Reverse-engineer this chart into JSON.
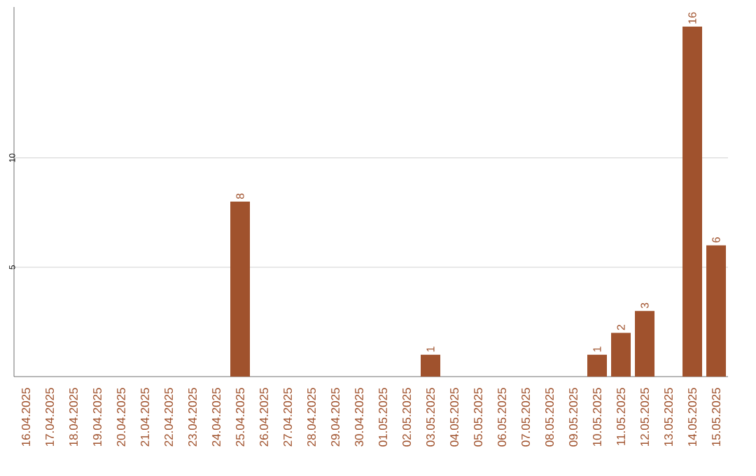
{
  "chart_data": {
    "type": "bar",
    "categories": [
      "16.04.2025",
      "17.04.2025",
      "18.04.2025",
      "19.04.2025",
      "20.04.2025",
      "21.04.2025",
      "22.04.2025",
      "23.04.2025",
      "24.04.2025",
      "25.04.2025",
      "26.04.2025",
      "27.04.2025",
      "28.04.2025",
      "29.04.2025",
      "30.04.2025",
      "01.05.2025",
      "02.05.2025",
      "03.05.2025",
      "04.05.2025",
      "05.05.2025",
      "06.05.2025",
      "07.05.2025",
      "08.05.2025",
      "09.05.2025",
      "10.05.2025",
      "11.05.2025",
      "12.05.2025",
      "13.05.2025",
      "14.05.2025",
      "15.05.2025"
    ],
    "values": [
      0,
      0,
      0,
      0,
      0,
      0,
      0,
      0,
      0,
      8,
      0,
      0,
      0,
      0,
      0,
      0,
      0,
      1,
      0,
      0,
      0,
      0,
      0,
      0,
      1,
      2,
      3,
      0,
      16,
      6
    ],
    "value_labels": [
      null,
      null,
      null,
      null,
      null,
      null,
      null,
      null,
      null,
      "8",
      null,
      null,
      null,
      null,
      null,
      null,
      null,
      "1",
      null,
      null,
      null,
      null,
      null,
      null,
      "1",
      "2",
      "3",
      null,
      "16",
      "6"
    ],
    "color": "#a0522d",
    "ylim": [
      0,
      16.9
    ],
    "yticks": [
      5,
      10
    ],
    "grid": "y"
  }
}
